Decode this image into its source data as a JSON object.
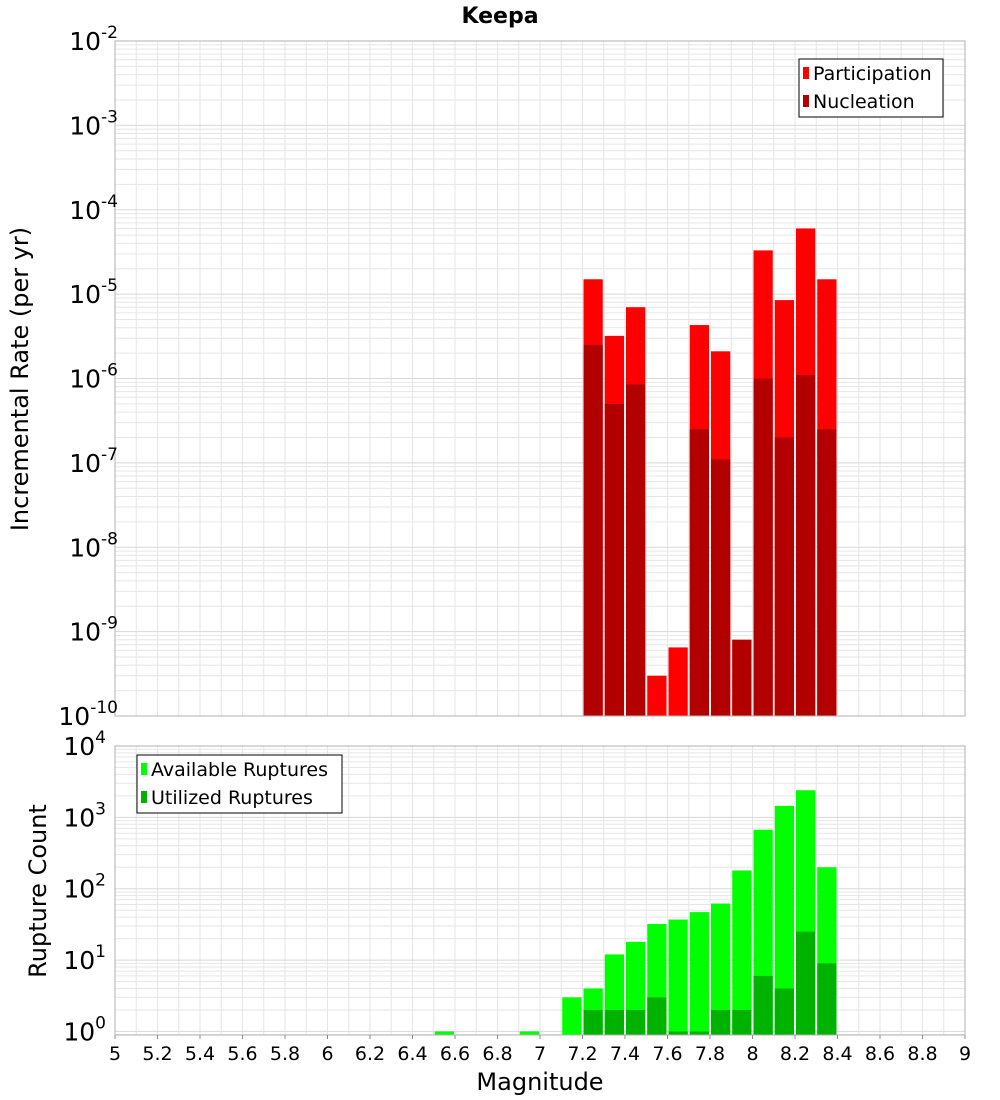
{
  "title": "Keepa",
  "colors": {
    "participation": "#ff0000",
    "nucleation": "#b20000",
    "available": "#00ff00",
    "utilized": "#00b200",
    "grid": "#e6e6e6",
    "frame": "#b0b0b0"
  },
  "chart_data": [
    {
      "type": "bar",
      "title": "Keepa",
      "ylabel": "Incremental Rate (per yr)",
      "xlabel": "",
      "yscale": "log",
      "ylim_exponents": [
        -10,
        -2
      ],
      "xlim": [
        5,
        9
      ],
      "y_tick_labels": [
        {
          "base": "10",
          "exp": "-2"
        },
        {
          "base": "10",
          "exp": "-3"
        },
        {
          "base": "10",
          "exp": "-4"
        },
        {
          "base": "10",
          "exp": "-5"
        },
        {
          "base": "10",
          "exp": "-6"
        },
        {
          "base": "10",
          "exp": "-7"
        },
        {
          "base": "10",
          "exp": "-8"
        },
        {
          "base": "10",
          "exp": "-9"
        },
        {
          "base": "10",
          "exp": "-10"
        }
      ],
      "legend": {
        "position": "top-right",
        "entries": [
          "Participation",
          "Nucleation"
        ]
      },
      "x": [
        7.25,
        7.35,
        7.45,
        7.55,
        7.65,
        7.75,
        7.85,
        7.95,
        8.05,
        8.15,
        8.25,
        8.35
      ],
      "series": [
        {
          "name": "Participation",
          "values": [
            1.5e-05,
            3.2e-06,
            7e-06,
            3e-10,
            6.5e-10,
            4.3e-06,
            2.1e-06,
            8e-10,
            3.3e-05,
            8.5e-06,
            6e-05,
            1.5e-05
          ]
        },
        {
          "name": "Nucleation",
          "values": [
            2.5e-06,
            5e-07,
            8.5e-07,
            null,
            null,
            2.5e-07,
            1.1e-07,
            8e-10,
            1e-06,
            2e-07,
            1.1e-06,
            2.5e-07
          ]
        }
      ]
    },
    {
      "type": "bar",
      "ylabel": "Rupture Count",
      "xlabel": "Magnitude",
      "yscale": "log",
      "ylim_exponents": [
        -0.05,
        4
      ],
      "xlim": [
        5,
        9
      ],
      "x_tick_labels": [
        "5",
        "5.2",
        "5.4",
        "5.6",
        "5.8",
        "6",
        "6.2",
        "6.4",
        "6.6",
        "6.8",
        "7",
        "7.2",
        "7.4",
        "7.6",
        "7.8",
        "8",
        "8.2",
        "8.4",
        "8.6",
        "8.8",
        "9"
      ],
      "y_tick_labels": [
        {
          "base": "10",
          "exp": "4"
        },
        {
          "base": "10",
          "exp": "3"
        },
        {
          "base": "10",
          "exp": "2"
        },
        {
          "base": "10",
          "exp": "1"
        },
        {
          "base": "10",
          "exp": "0"
        }
      ],
      "legend": {
        "position": "top-left",
        "entries": [
          "Available Ruptures",
          "Utilized Ruptures"
        ]
      },
      "x": [
        6.55,
        6.95,
        7.15,
        7.25,
        7.35,
        7.45,
        7.55,
        7.65,
        7.75,
        7.85,
        7.95,
        8.05,
        8.15,
        8.25,
        8.35
      ],
      "series": [
        {
          "name": "Available Ruptures",
          "values": [
            1,
            1,
            3,
            4,
            12,
            18,
            32,
            37,
            47,
            62,
            180,
            670,
            1450,
            2400,
            200
          ]
        },
        {
          "name": "Utilized Ruptures",
          "values": [
            null,
            null,
            null,
            2,
            2,
            2,
            3,
            1,
            1,
            2,
            2,
            6,
            4,
            25,
            9
          ]
        }
      ]
    }
  ]
}
